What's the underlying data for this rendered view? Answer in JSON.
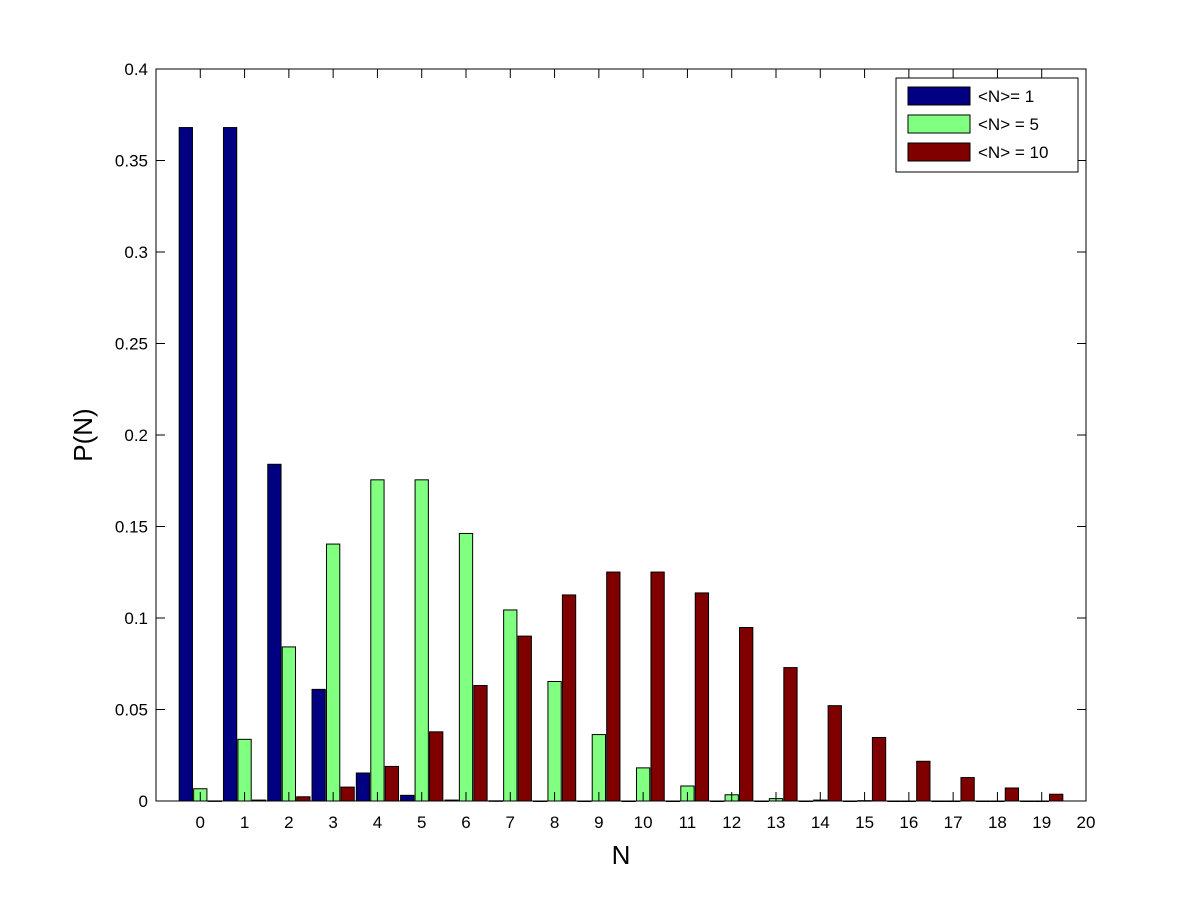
{
  "chart_data": {
    "type": "bar",
    "title": "",
    "xlabel": "N",
    "ylabel": "P(N)",
    "xlim": [
      -1,
      20
    ],
    "ylim": [
      0,
      0.4
    ],
    "x_ticks": [
      "0",
      "1",
      "2",
      "3",
      "4",
      "5",
      "6",
      "7",
      "8",
      "9",
      "10",
      "11",
      "12",
      "13",
      "14",
      "15",
      "16",
      "17",
      "18",
      "19",
      "20"
    ],
    "y_ticks": [
      "0",
      "0.05",
      "0.1",
      "0.15",
      "0.2",
      "0.25",
      "0.3",
      "0.35",
      "0.4"
    ],
    "grid": false,
    "legend_position": "top-right",
    "categories": [
      "0",
      "1",
      "2",
      "3",
      "4",
      "5",
      "6",
      "7",
      "8",
      "9",
      "10",
      "11",
      "12",
      "13",
      "14",
      "15",
      "16",
      "17",
      "18",
      "19"
    ],
    "series": [
      {
        "name": "<N>= 1",
        "color": "#000080",
        "values": [
          0.368,
          0.368,
          0.184,
          0.061,
          0.0153,
          0.0031,
          0.0005,
          0.0001,
          0,
          0,
          0,
          0,
          0,
          0,
          0,
          0,
          0,
          0,
          0,
          0
        ]
      },
      {
        "name": "<N> = 5",
        "color": "#80ff80",
        "values": [
          0.0067,
          0.0337,
          0.0842,
          0.1404,
          0.1755,
          0.1755,
          0.1462,
          0.1044,
          0.0653,
          0.0363,
          0.0181,
          0.0082,
          0.0034,
          0.0013,
          0.0005,
          0.0002,
          0,
          0,
          0,
          0
        ]
      },
      {
        "name": "<N> = 10",
        "color": "#800000",
        "values": [
          5e-05,
          0.0005,
          0.0023,
          0.0076,
          0.0189,
          0.0378,
          0.0631,
          0.0901,
          0.1126,
          0.1251,
          0.1251,
          0.1137,
          0.0948,
          0.0729,
          0.0521,
          0.0347,
          0.0217,
          0.0128,
          0.0071,
          0.0037
        ]
      }
    ]
  }
}
